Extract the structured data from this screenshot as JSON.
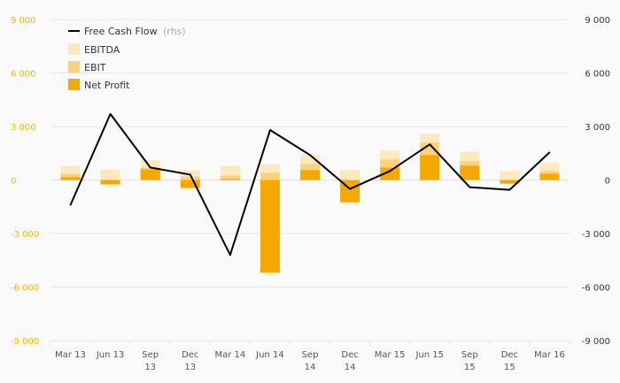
{
  "chart_data": {
    "type": "bar",
    "categories": [
      [
        "Mar 13"
      ],
      [
        "Jun 13"
      ],
      [
        "Sep",
        "13"
      ],
      [
        "Dec",
        "13"
      ],
      [
        "Mar 14"
      ],
      [
        "Jun 14"
      ],
      [
        "Sep",
        "14"
      ],
      [
        "Dec",
        "14"
      ],
      [
        "Mar 15"
      ],
      [
        "Jun 15"
      ],
      [
        "Sep",
        "15"
      ],
      [
        "Dec",
        "15"
      ],
      [
        "Mar 16"
      ]
    ],
    "series": [
      {
        "name": "EBITDA",
        "kind": "bar",
        "color": "#fde9bd",
        "values": [
          800,
          600,
          1100,
          550,
          800,
          900,
          1400,
          550,
          1650,
          2600,
          1600,
          500,
          950
        ]
      },
      {
        "name": "EBIT",
        "kind": "bar",
        "color": "#fbd27a",
        "values": [
          350,
          -150,
          700,
          200,
          250,
          400,
          900,
          -200,
          1150,
          2100,
          1050,
          -100,
          500
        ]
      },
      {
        "name": "Net Profit",
        "kind": "bar",
        "color": "#f5a800",
        "values": [
          150,
          -250,
          600,
          -450,
          50,
          -5200,
          550,
          -1250,
          700,
          1400,
          800,
          -200,
          350
        ]
      },
      {
        "name": "Free Cash Flow",
        "suffix": "(rhs)",
        "kind": "line",
        "axis": "right",
        "color": "#000000",
        "values": [
          -1400,
          3700,
          700,
          300,
          -4200,
          2800,
          1400,
          -500,
          500,
          2000,
          -400,
          -550,
          1550
        ]
      }
    ],
    "ylim": [
      -9000,
      9000
    ],
    "y_ticks": [
      "9 000",
      "6 000",
      "3 000",
      "0",
      "-3 000",
      "-6 000",
      "-9 000"
    ],
    "y_tick_values": [
      9000,
      6000,
      3000,
      0,
      -3000,
      -6000,
      -9000
    ],
    "y2_ticks": [
      "9 000",
      "6 000",
      "3 000",
      "0",
      "-3 000",
      "-6 000",
      "-9 000"
    ],
    "legend_placement": "top-left",
    "grid": true,
    "colors": {
      "left_axis": "#f5b400",
      "right_axis": "#333333"
    }
  }
}
